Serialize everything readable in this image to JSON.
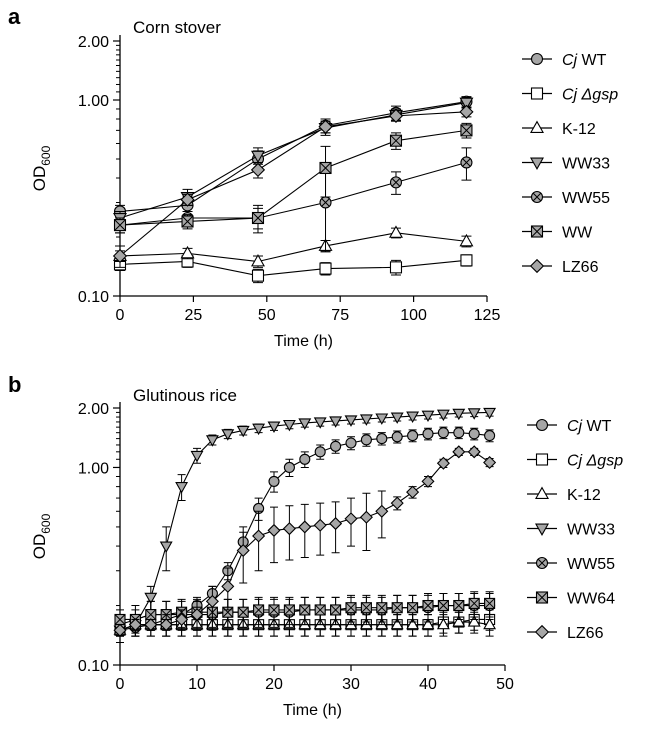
{
  "colors": {
    "line": "#000000",
    "gray_fill": "#a6a6a6",
    "white_fill": "#ffffff"
  },
  "chart_data": [
    {
      "panel": "a",
      "type": "line",
      "title": "Corn stover",
      "xlabel": "Time (h)",
      "ylabel": "OD600",
      "ylabel_main": "OD",
      "ylabel_sub": "600",
      "yscale": "log",
      "xlim": [
        0,
        125
      ],
      "ylim": [
        0.1,
        2.0
      ],
      "xticks": [
        0,
        25,
        50,
        75,
        100,
        125
      ],
      "yticks": [
        0.1,
        1.0,
        2.0
      ],
      "ytick_labels": [
        "0.10",
        "1.00",
        "2.00"
      ],
      "legend_position": "right",
      "x": [
        0,
        23,
        47,
        70,
        94,
        118
      ],
      "series": [
        {
          "name": "Cj WT",
          "name_italic": "Cj",
          "name_rest": " WT",
          "marker": "circle",
          "fill": "gray",
          "values": [
            0.27,
            0.29,
            0.5,
            0.74,
            0.86,
            0.98
          ],
          "err": [
            0.02,
            0.03,
            0.05,
            0.06,
            0.07,
            0.06
          ]
        },
        {
          "name": "Cj Δgsp",
          "name_italic": "Cj Δgsp",
          "name_rest": "",
          "marker": "square",
          "fill": "white",
          "values": [
            0.145,
            0.15,
            0.127,
            0.138,
            0.14,
            0.152
          ],
          "err": [
            0.01,
            0.01,
            0.01,
            0.01,
            0.012,
            0.01
          ]
        },
        {
          "name": "K-12",
          "name_italic": "",
          "name_rest": "K-12",
          "marker": "triangle-up",
          "fill": "white",
          "values": [
            0.16,
            0.165,
            0.15,
            0.18,
            0.21,
            0.19
          ],
          "err": [
            0.01,
            0.01,
            0.01,
            0.012,
            0.012,
            0.012
          ]
        },
        {
          "name": "WW33",
          "name_italic": "",
          "name_rest": "WW33",
          "marker": "triangle-down",
          "fill": "gray",
          "values": [
            0.25,
            0.32,
            0.52,
            0.72,
            0.84,
            0.97
          ],
          "err": [
            0.02,
            0.03,
            0.05,
            0.06,
            0.06,
            0.06
          ]
        },
        {
          "name": "WW55",
          "name_italic": "",
          "name_rest": "WW55",
          "marker": "circle-x",
          "fill": "gray",
          "values": [
            0.23,
            0.25,
            0.25,
            0.3,
            0.38,
            0.48
          ],
          "err": [
            0.02,
            0.02,
            0.04,
            0.13,
            0.05,
            0.09
          ]
        },
        {
          "name": "WW",
          "name_italic": "",
          "name_rest": "WW",
          "marker": "square-x",
          "fill": "gray",
          "values": [
            0.23,
            0.24,
            0.25,
            0.45,
            0.62,
            0.7
          ],
          "err": [
            0.02,
            0.02,
            0.03,
            0.13,
            0.06,
            0.06
          ]
        },
        {
          "name": "LZ66",
          "name_italic": "",
          "name_rest": "LZ66",
          "marker": "diamond",
          "fill": "gray",
          "values": [
            0.16,
            0.31,
            0.44,
            0.73,
            0.83,
            0.87
          ],
          "err": [
            0.02,
            0.02,
            0.04,
            0.05,
            0.05,
            0.05
          ]
        }
      ]
    },
    {
      "panel": "b",
      "type": "line",
      "title": "Glutinous rice",
      "xlabel": "Time (h)",
      "ylabel": "OD600",
      "ylabel_main": "OD",
      "ylabel_sub": "600",
      "yscale": "log",
      "xlim": [
        0,
        50
      ],
      "ylim": [
        0.1,
        2.0
      ],
      "xticks": [
        0,
        10,
        20,
        30,
        40,
        50
      ],
      "yticks": [
        0.1,
        1.0,
        2.0
      ],
      "ytick_labels": [
        "0.10",
        "1.00",
        "2.00"
      ],
      "legend_position": "right",
      "x": [
        0,
        2,
        4,
        6,
        8,
        10,
        12,
        14,
        16,
        18,
        20,
        22,
        24,
        26,
        28,
        30,
        32,
        34,
        36,
        38,
        40,
        42,
        44,
        46,
        48
      ],
      "series": [
        {
          "name": "Cj WT",
          "name_italic": "Cj",
          "name_rest": " WT",
          "marker": "circle",
          "fill": "gray",
          "values": [
            0.15,
            0.155,
            0.16,
            0.17,
            0.18,
            0.2,
            0.23,
            0.3,
            0.42,
            0.62,
            0.85,
            1.0,
            1.1,
            1.2,
            1.28,
            1.33,
            1.38,
            1.4,
            1.43,
            1.45,
            1.48,
            1.5,
            1.5,
            1.48,
            1.45
          ],
          "err": [
            0.01,
            0.01,
            0.01,
            0.01,
            0.01,
            0.02,
            0.02,
            0.03,
            0.05,
            0.08,
            0.1,
            0.1,
            0.1,
            0.1,
            0.1,
            0.1,
            0.1,
            0.1,
            0.1,
            0.1,
            0.1,
            0.1,
            0.1,
            0.1,
            0.1
          ]
        },
        {
          "name": "Cj Δgsp",
          "name_italic": "Cj Δgsp",
          "name_rest": "",
          "marker": "square",
          "fill": "white",
          "values": [
            0.15,
            0.16,
            0.16,
            0.16,
            0.16,
            0.16,
            0.16,
            0.16,
            0.16,
            0.16,
            0.16,
            0.16,
            0.16,
            0.16,
            0.16,
            0.16,
            0.16,
            0.16,
            0.16,
            0.16,
            0.16,
            0.165,
            0.165,
            0.17,
            0.17
          ],
          "err": [
            0.02,
            0.02,
            0.02,
            0.02,
            0.02,
            0.02,
            0.02,
            0.02,
            0.02,
            0.02,
            0.02,
            0.02,
            0.02,
            0.02,
            0.02,
            0.02,
            0.02,
            0.02,
            0.02,
            0.02,
            0.02,
            0.02,
            0.02,
            0.02,
            0.02
          ]
        },
        {
          "name": "K-12",
          "name_italic": "",
          "name_rest": "K-12",
          "marker": "triangle-up",
          "fill": "white",
          "values": [
            0.15,
            0.16,
            0.16,
            0.16,
            0.16,
            0.16,
            0.16,
            0.16,
            0.16,
            0.16,
            0.16,
            0.16,
            0.16,
            0.16,
            0.16,
            0.16,
            0.16,
            0.16,
            0.16,
            0.16,
            0.16,
            0.16,
            0.165,
            0.165,
            0.16
          ],
          "err": [
            0.02,
            0.02,
            0.02,
            0.02,
            0.02,
            0.02,
            0.02,
            0.02,
            0.02,
            0.02,
            0.02,
            0.02,
            0.02,
            0.02,
            0.02,
            0.02,
            0.02,
            0.02,
            0.02,
            0.02,
            0.02,
            0.02,
            0.02,
            0.02,
            0.02
          ]
        },
        {
          "name": "WW33",
          "name_italic": "",
          "name_rest": "WW33",
          "marker": "triangle-down",
          "fill": "gray",
          "values": [
            0.15,
            0.16,
            0.22,
            0.4,
            0.8,
            1.15,
            1.38,
            1.48,
            1.54,
            1.58,
            1.62,
            1.65,
            1.68,
            1.7,
            1.72,
            1.74,
            1.76,
            1.78,
            1.8,
            1.82,
            1.84,
            1.86,
            1.88,
            1.89,
            1.9
          ],
          "err": [
            0.02,
            0.02,
            0.03,
            0.1,
            0.12,
            0.1,
            0.08,
            0.08,
            0.08,
            0.08,
            0.08,
            0.08,
            0.08,
            0.08,
            0.08,
            0.08,
            0.08,
            0.08,
            0.08,
            0.08,
            0.08,
            0.08,
            0.08,
            0.08,
            0.08
          ]
        },
        {
          "name": "WW55",
          "name_italic": "",
          "name_rest": "WW55",
          "marker": "circle-x",
          "fill": "gray",
          "values": [
            0.16,
            0.17,
            0.18,
            0.18,
            0.18,
            0.18,
            0.18,
            0.185,
            0.185,
            0.185,
            0.185,
            0.185,
            0.19,
            0.19,
            0.19,
            0.19,
            0.19,
            0.19,
            0.195,
            0.195,
            0.195,
            0.2,
            0.2,
            0.2,
            0.2
          ],
          "err": [
            0.02,
            0.02,
            0.03,
            0.03,
            0.03,
            0.03,
            0.03,
            0.03,
            0.03,
            0.03,
            0.03,
            0.03,
            0.03,
            0.03,
            0.03,
            0.03,
            0.03,
            0.03,
            0.03,
            0.03,
            0.03,
            0.03,
            0.03,
            0.03,
            0.03
          ]
        },
        {
          "name": "WW64",
          "name_italic": "",
          "name_rest": "WW64",
          "marker": "square-x",
          "fill": "gray",
          "values": [
            0.17,
            0.17,
            0.18,
            0.18,
            0.185,
            0.185,
            0.185,
            0.185,
            0.185,
            0.19,
            0.19,
            0.19,
            0.19,
            0.19,
            0.19,
            0.195,
            0.195,
            0.195,
            0.195,
            0.195,
            0.2,
            0.2,
            0.2,
            0.205,
            0.205
          ],
          "err": [
            0.02,
            0.03,
            0.03,
            0.03,
            0.03,
            0.03,
            0.03,
            0.03,
            0.03,
            0.03,
            0.03,
            0.03,
            0.03,
            0.03,
            0.03,
            0.03,
            0.03,
            0.03,
            0.03,
            0.03,
            0.03,
            0.03,
            0.03,
            0.03,
            0.03
          ]
        },
        {
          "name": "LZ66",
          "name_italic": "",
          "name_rest": "LZ66",
          "marker": "diamond",
          "fill": "gray",
          "values": [
            0.15,
            0.16,
            0.16,
            0.16,
            0.17,
            0.18,
            0.21,
            0.25,
            0.38,
            0.45,
            0.48,
            0.49,
            0.5,
            0.51,
            0.52,
            0.55,
            0.56,
            0.6,
            0.66,
            0.75,
            0.85,
            1.05,
            1.2,
            1.2,
            1.06
          ],
          "err": [
            0.01,
            0.01,
            0.01,
            0.02,
            0.02,
            0.03,
            0.04,
            0.06,
            0.12,
            0.15,
            0.15,
            0.15,
            0.15,
            0.15,
            0.15,
            0.15,
            0.18,
            0.16,
            0.05,
            0.05,
            0.05,
            0.05,
            0.05,
            0.05,
            0.05
          ]
        }
      ]
    }
  ]
}
